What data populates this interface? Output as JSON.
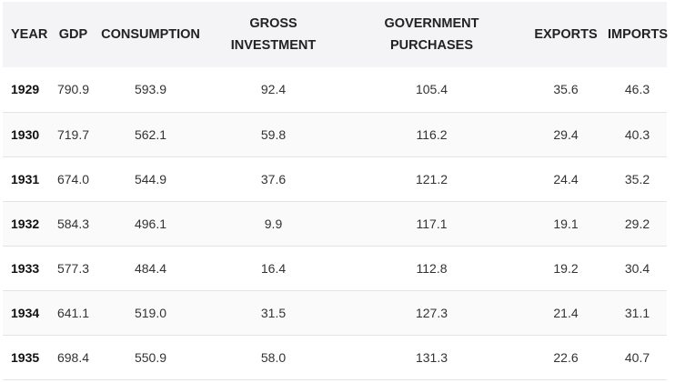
{
  "columns": [
    {
      "key": "year",
      "label_lines": [
        "YEAR"
      ]
    },
    {
      "key": "gdp",
      "label_lines": [
        "GDP"
      ]
    },
    {
      "key": "consumption",
      "label_lines": [
        "CONSUMPTION"
      ]
    },
    {
      "key": "gross_investment",
      "label_lines": [
        "GROSS",
        "INVESTMENT"
      ]
    },
    {
      "key": "government_purchases",
      "label_lines": [
        "GOVERNMENT",
        "PURCHASES"
      ]
    },
    {
      "key": "exports",
      "label_lines": [
        "EXPORTS"
      ]
    },
    {
      "key": "imports",
      "label_lines": [
        "IMPORTS"
      ]
    }
  ],
  "rows": [
    {
      "year": "1929",
      "gdp": "790.9",
      "consumption": "593.9",
      "gross_investment": "92.4",
      "government_purchases": "105.4",
      "exports": "35.6",
      "imports": "46.3"
    },
    {
      "year": "1930",
      "gdp": "719.7",
      "consumption": "562.1",
      "gross_investment": "59.8",
      "government_purchases": "116.2",
      "exports": "29.4",
      "imports": "40.3"
    },
    {
      "year": "1931",
      "gdp": "674.0",
      "consumption": "544.9",
      "gross_investment": "37.6",
      "government_purchases": "121.2",
      "exports": "24.4",
      "imports": "35.2"
    },
    {
      "year": "1932",
      "gdp": "584.3",
      "consumption": "496.1",
      "gross_investment": "9.9",
      "government_purchases": "117.1",
      "exports": "19.1",
      "imports": "29.2"
    },
    {
      "year": "1933",
      "gdp": "577.3",
      "consumption": "484.4",
      "gross_investment": "16.4",
      "government_purchases": "112.8",
      "exports": "19.2",
      "imports": "30.4"
    },
    {
      "year": "1934",
      "gdp": "641.1",
      "consumption": "519.0",
      "gross_investment": "31.5",
      "government_purchases": "127.3",
      "exports": "21.4",
      "imports": "31.1"
    },
    {
      "year": "1935",
      "gdp": "698.4",
      "consumption": "550.9",
      "gross_investment": "58.0",
      "government_purchases": "131.3",
      "exports": "22.6",
      "imports": "40.7"
    }
  ]
}
